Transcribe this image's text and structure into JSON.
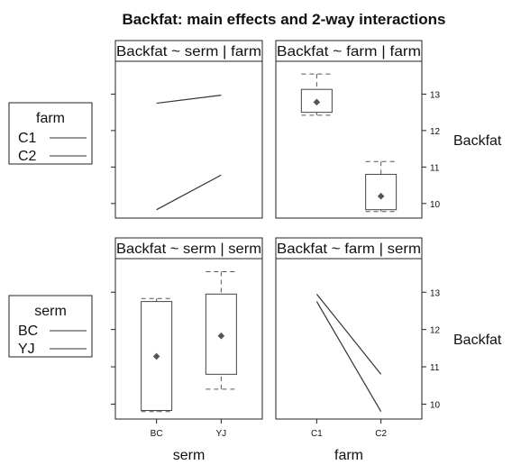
{
  "title": "Backfat: main effects and 2-way interactions",
  "colors": {
    "line": "#333333",
    "box": "#444444",
    "whisker": "#555555",
    "median": "#555555",
    "strip_bg": "#ffffff"
  },
  "y_axis": {
    "label": "Backfat",
    "ticks": [
      10,
      11,
      12,
      13
    ],
    "range": [
      9.6,
      13.9
    ]
  },
  "legends": [
    {
      "title": "farm",
      "entries": [
        "C1",
        "C2"
      ]
    },
    {
      "title": "serm",
      "entries": [
        "BC",
        "YJ"
      ]
    }
  ],
  "x_axes": [
    {
      "label": "serm",
      "ticks": [
        "BC",
        "YJ"
      ]
    },
    {
      "label": "farm",
      "ticks": [
        "C1",
        "C2"
      ]
    }
  ],
  "chart_data": [
    {
      "type": "line",
      "strip": "Backfat ~ serm | farm",
      "categories": [
        "BC",
        "YJ"
      ],
      "series": [
        {
          "name": "C1",
          "values": [
            12.75,
            12.97
          ]
        },
        {
          "name": "C2",
          "values": [
            9.83,
            10.78
          ]
        }
      ]
    },
    {
      "type": "box",
      "strip": "Backfat ~ farm | farm",
      "categories": [
        "C1",
        "C2"
      ],
      "boxes": [
        {
          "min": 12.42,
          "q1": 12.5,
          "q3": 13.13,
          "max": 13.55,
          "mean": 12.78
        },
        {
          "min": 9.78,
          "q1": 9.83,
          "q3": 10.8,
          "max": 11.15,
          "mean": 10.2
        }
      ]
    },
    {
      "type": "box",
      "strip": "Backfat ~ serm | serm",
      "categories": [
        "BC",
        "YJ"
      ],
      "boxes": [
        {
          "min": 9.8,
          "q1": 9.83,
          "q3": 12.75,
          "max": 12.83,
          "mean": 11.28
        },
        {
          "min": 10.4,
          "q1": 10.8,
          "q3": 12.95,
          "max": 13.55,
          "mean": 11.83
        }
      ]
    },
    {
      "type": "line",
      "strip": "Backfat ~ farm | serm",
      "categories": [
        "C1",
        "C2"
      ],
      "series": [
        {
          "name": "BC",
          "values": [
            12.75,
            9.8
          ]
        },
        {
          "name": "YJ",
          "values": [
            12.95,
            10.8
          ]
        }
      ]
    }
  ]
}
